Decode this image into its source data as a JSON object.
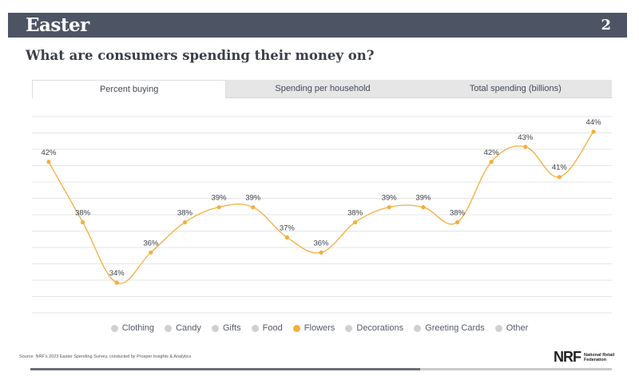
{
  "header": {
    "title": "Easter",
    "page_number": "2"
  },
  "headline": "What are consumers spending their money on?",
  "tabs": [
    {
      "label": "Percent buying",
      "active": true
    },
    {
      "label": "Spending per household",
      "active": false
    },
    {
      "label": "Total spending (billions)",
      "active": false
    }
  ],
  "legend": [
    {
      "label": "Clothing",
      "color": "#d0d0d0"
    },
    {
      "label": "Candy",
      "color": "#d0d0d0"
    },
    {
      "label": "Gifts",
      "color": "#d0d0d0"
    },
    {
      "label": "Food",
      "color": "#d0d0d0"
    },
    {
      "label": "Flowers",
      "color": "#f5ad3c"
    },
    {
      "label": "Decorations",
      "color": "#d0d0d0"
    },
    {
      "label": "Greeting Cards",
      "color": "#d0d0d0"
    },
    {
      "label": "Other",
      "color": "#d0d0d0"
    }
  ],
  "source": "Source: NRF's 2023 Easter Spending Survey, conducted by Prosper Insights & Analytics",
  "logo": {
    "mark": "NRF",
    "name": "National Retail Federation"
  },
  "chart_data": {
    "type": "line",
    "series": [
      {
        "name": "Flowers",
        "color": "#f5ad3c",
        "values": [
          42,
          38,
          34,
          36,
          38,
          39,
          39,
          37,
          36,
          38,
          39,
          39,
          38,
          42,
          43,
          41,
          44
        ],
        "labels": [
          "42%",
          "38%",
          "34%",
          "36%",
          "38%",
          "39%",
          "39%",
          "37%",
          "36%",
          "38%",
          "39%",
          "39%",
          "38%",
          "42%",
          "43%",
          "41%",
          "44%"
        ]
      }
    ],
    "ylim": [
      32,
      45
    ],
    "grid": true
  }
}
